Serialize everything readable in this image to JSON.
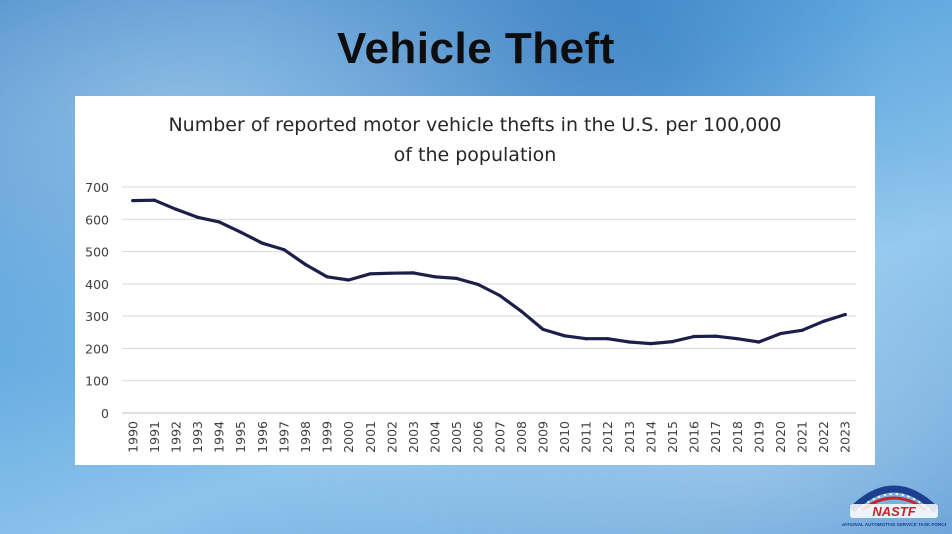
{
  "slide": {
    "title": "Vehicle Theft"
  },
  "chart_data": {
    "type": "line",
    "title_lines": [
      "Number of reported motor vehicle thefts in the U.S. per 100,000",
      "of the population"
    ],
    "xlabel": "",
    "ylabel": "",
    "ylim": [
      0,
      700
    ],
    "yticks": [
      0,
      100,
      200,
      300,
      400,
      500,
      600,
      700
    ],
    "grid": true,
    "legend": "none",
    "line_color": "#1b1f4a",
    "categories": [
      "1990",
      "1991",
      "1992",
      "1993",
      "1994",
      "1995",
      "1996",
      "1997",
      "1998",
      "1999",
      "2000",
      "2001",
      "2002",
      "2003",
      "2004",
      "2005",
      "2006",
      "2007",
      "2008",
      "2009",
      "2010",
      "2011",
      "2012",
      "2013",
      "2014",
      "2015",
      "2016",
      "2017",
      "2018",
      "2019",
      "2020",
      "2021",
      "2022",
      "2023"
    ],
    "values": [
      658,
      659,
      631,
      606,
      592,
      560,
      526,
      506,
      460,
      422,
      412,
      431,
      433,
      434,
      422,
      417,
      398,
      364,
      315,
      259,
      239,
      230,
      230,
      220,
      215,
      221,
      237,
      238,
      230,
      220,
      246,
      256,
      284,
      305
    ]
  },
  "logo": {
    "text": "NASTF",
    "subtitle": "NATIONAL AUTOMOTIVE SERVICE TASK FORCE",
    "colors": {
      "arc": "#1c3f8f",
      "text": "#c8232c"
    }
  }
}
